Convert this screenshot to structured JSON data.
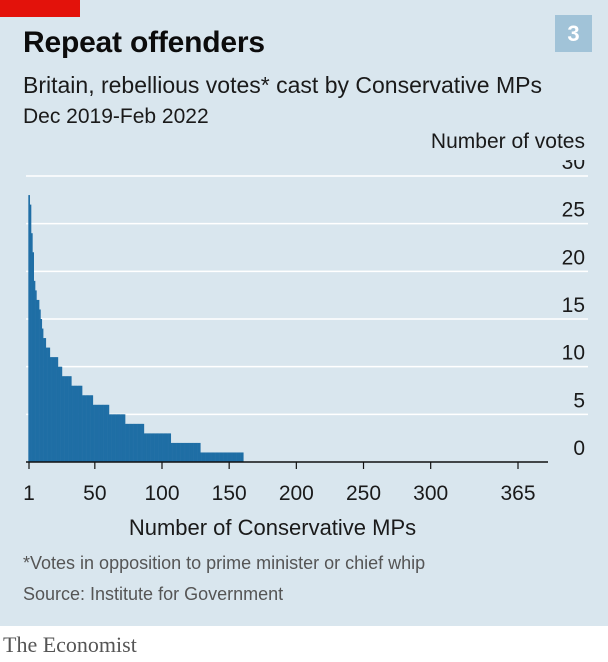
{
  "badge": "3",
  "title": "Repeat offenders",
  "subtitle": "Britain, rebellious votes* cast by Conservative MPs",
  "dates": "Dec 2019-Feb 2022",
  "footnote": "*Votes in opposition to prime minister or chief whip",
  "source": "Source: Institute for Government",
  "brand": "The Economist",
  "colors": {
    "bar": "#1f6ea5",
    "panel": "#d9e6ee",
    "grid": "#ffffff",
    "brand_red": "#e3120b"
  },
  "chart_data": {
    "type": "bar",
    "title": "Repeat offenders",
    "subtitle": "Britain, rebellious votes* cast by Conservative MPs",
    "xlabel": "Number of Conservative MPs",
    "ylabel": "Number of votes",
    "xlim": [
      0,
      365
    ],
    "ylim": [
      0,
      30
    ],
    "x_ticks": [
      1,
      50,
      100,
      150,
      200,
      250,
      300,
      365
    ],
    "y_ticks": [
      0,
      5,
      10,
      15,
      20,
      25,
      30
    ],
    "grid": true,
    "note": "MPs ranked by number of rebellious votes; each bar is one MP",
    "series": [
      {
        "values": [
          28,
          27,
          24,
          22,
          19,
          18,
          17,
          17,
          16,
          15,
          14,
          13,
          13,
          12,
          12,
          12,
          11,
          11,
          11,
          11,
          11,
          11,
          10,
          10,
          10,
          9,
          9,
          9,
          9,
          9,
          9,
          9,
          8,
          8,
          8,
          8,
          8,
          8,
          8,
          8,
          7,
          7,
          7,
          7,
          7,
          7,
          7,
          7,
          6,
          6,
          6,
          6,
          6,
          6,
          6,
          6,
          6,
          6,
          6,
          6,
          5,
          5,
          5,
          5,
          5,
          5,
          5,
          5,
          5,
          5,
          5,
          5,
          4,
          4,
          4,
          4,
          4,
          4,
          4,
          4,
          4,
          4,
          4,
          4,
          4,
          4,
          3,
          3,
          3,
          3,
          3,
          3,
          3,
          3,
          3,
          3,
          3,
          3,
          3,
          3,
          3,
          3,
          3,
          3,
          3,
          3,
          2,
          2,
          2,
          2,
          2,
          2,
          2,
          2,
          2,
          2,
          2,
          2,
          2,
          2,
          2,
          2,
          2,
          2,
          2,
          2,
          2,
          2,
          1,
          1,
          1,
          1,
          1,
          1,
          1,
          1,
          1,
          1,
          1,
          1,
          1,
          1,
          1,
          1,
          1,
          1,
          1,
          1,
          1,
          1,
          1,
          1,
          1,
          1,
          1,
          1,
          1,
          1,
          1,
          1
        ]
      }
    ]
  }
}
